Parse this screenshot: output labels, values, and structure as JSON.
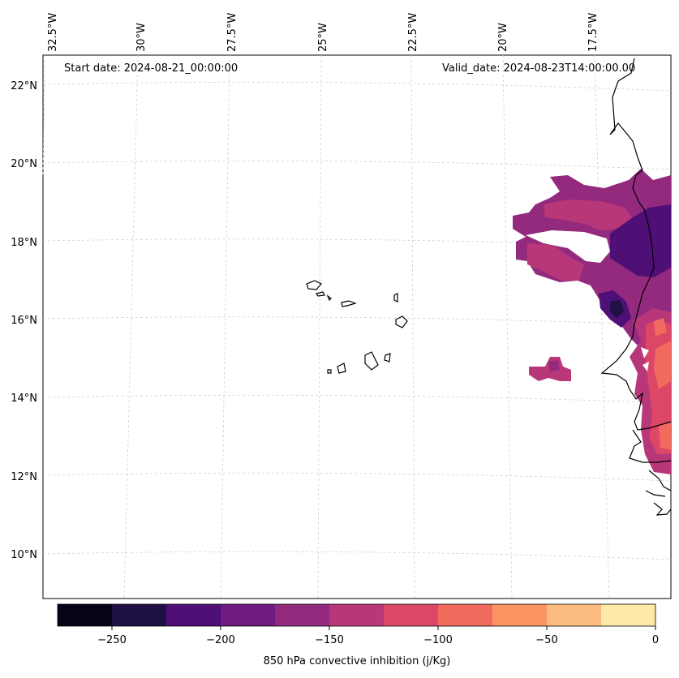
{
  "header": {
    "start_date": "Start date: 2024-08-21_00:00:00",
    "valid_date": "Valid_date: 2024-08-23T14:00:00.00"
  },
  "map": {
    "lon_labels": [
      "32.5°W",
      "30°W",
      "27.5°W",
      "25°W",
      "22.5°W",
      "20°W",
      "17.5°W"
    ],
    "lat_labels": [
      "22°N",
      "20°N",
      "18°N",
      "16°N",
      "14°N",
      "12°N",
      "10°N"
    ],
    "gridlines": true
  },
  "colorbar": {
    "label": "850 hPa convective inhibition (j/Kg)",
    "ticks": [
      "−250",
      "−200",
      "−150",
      "−100",
      "−50",
      "0"
    ],
    "levels": [
      -275,
      -250,
      -225,
      -200,
      -175,
      -150,
      -125,
      -100,
      -75,
      -50,
      -25,
      0
    ],
    "colors": [
      "#050416",
      "#1f1143",
      "#4e0f76",
      "#6f1c80",
      "#932a7e",
      "#b73779",
      "#dc4768",
      "#f06a5e",
      "#fb9462",
      "#fdbc7f",
      "#fde9a8"
    ]
  }
}
